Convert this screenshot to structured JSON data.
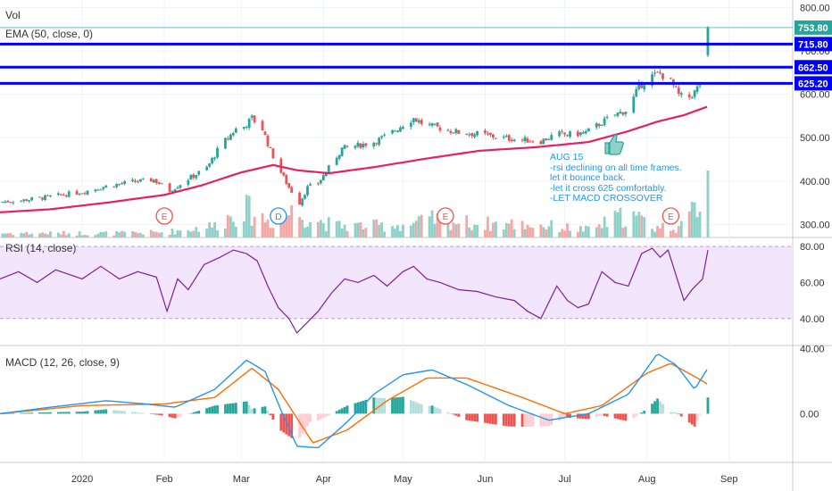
{
  "chart_data": {
    "type": "candlestick",
    "title": "",
    "xlabel": "",
    "ylabel": "",
    "x_range": [
      "2019-12-01",
      "2020-09-25"
    ],
    "x_ticks": [
      {
        "date": "2020-01-01",
        "label": "2020"
      },
      {
        "date": "2020-02-01",
        "label": "Feb"
      },
      {
        "date": "2020-03-01",
        "label": "Mar"
      },
      {
        "date": "2020-04-01",
        "label": "Apr"
      },
      {
        "date": "2020-05-01",
        "label": "May"
      },
      {
        "date": "2020-06-01",
        "label": "Jun"
      },
      {
        "date": "2020-07-01",
        "label": "Jul"
      },
      {
        "date": "2020-08-01",
        "label": "Aug"
      },
      {
        "date": "2020-09-01",
        "label": "Sep"
      }
    ],
    "price_panel": {
      "ylim": [
        270,
        805
      ],
      "y_ticks": [
        "300.00",
        "400.00",
        "500.00",
        "600.00",
        "700.00",
        "800.00"
      ],
      "close_series": [
        [
          "2019-12-01",
          352
        ],
        [
          "2019-12-10",
          356
        ],
        [
          "2019-12-20",
          364
        ],
        [
          "2020-01-01",
          375
        ],
        [
          "2020-01-10",
          388
        ],
        [
          "2020-01-20",
          398
        ],
        [
          "2020-01-28",
          403
        ],
        [
          "2020-02-03",
          378
        ],
        [
          "2020-02-10",
          405
        ],
        [
          "2020-02-17",
          430
        ],
        [
          "2020-02-22",
          480
        ],
        [
          "2020-02-28",
          520
        ],
        [
          "2020-03-02",
          525
        ],
        [
          "2020-03-05",
          545
        ],
        [
          "2020-03-09",
          520
        ],
        [
          "2020-03-12",
          470
        ],
        [
          "2020-03-16",
          420
        ],
        [
          "2020-03-19",
          385
        ],
        [
          "2020-03-23",
          350
        ],
        [
          "2020-03-26",
          385
        ],
        [
          "2020-03-30",
          395
        ],
        [
          "2020-04-03",
          430
        ],
        [
          "2020-04-08",
          475
        ],
        [
          "2020-04-14",
          482
        ],
        [
          "2020-04-20",
          490
        ],
        [
          "2020-04-25",
          505
        ],
        [
          "2020-05-01",
          530
        ],
        [
          "2020-05-05",
          545
        ],
        [
          "2020-05-09",
          530
        ],
        [
          "2020-05-15",
          522
        ],
        [
          "2020-05-22",
          512
        ],
        [
          "2020-05-30",
          508
        ],
        [
          "2020-06-07",
          500
        ],
        [
          "2020-06-15",
          495
        ],
        [
          "2020-06-22",
          492
        ],
        [
          "2020-06-28",
          508
        ],
        [
          "2020-07-04",
          507
        ],
        [
          "2020-07-09",
          512
        ],
        [
          "2020-07-15",
          535
        ],
        [
          "2020-07-20",
          553
        ],
        [
          "2020-07-25",
          565
        ],
        [
          "2020-07-29",
          618
        ],
        [
          "2020-08-02",
          640
        ],
        [
          "2020-08-06",
          648
        ],
        [
          "2020-08-10",
          630
        ],
        [
          "2020-08-13",
          598
        ],
        [
          "2020-08-16",
          588
        ],
        [
          "2020-08-19",
          605
        ],
        [
          "2020-08-22",
          632
        ],
        [
          "2020-08-24",
          753.8
        ]
      ],
      "ema_50": [
        [
          "2019-12-01",
          328
        ],
        [
          "2019-12-20",
          335
        ],
        [
          "2020-01-10",
          350
        ],
        [
          "2020-02-01",
          368
        ],
        [
          "2020-02-15",
          390
        ],
        [
          "2020-03-01",
          420
        ],
        [
          "2020-03-13",
          437
        ],
        [
          "2020-03-22",
          425
        ],
        [
          "2020-04-03",
          418
        ],
        [
          "2020-04-20",
          432
        ],
        [
          "2020-05-10",
          452
        ],
        [
          "2020-05-30",
          470
        ],
        [
          "2020-06-20",
          478
        ],
        [
          "2020-07-10",
          490
        ],
        [
          "2020-07-25",
          515
        ],
        [
          "2020-08-05",
          537
        ],
        [
          "2020-08-15",
          552
        ],
        [
          "2020-08-24",
          572
        ]
      ],
      "volume": [
        [
          "2020-01-15",
          8
        ],
        [
          "2020-02-02",
          10
        ],
        [
          "2020-02-20",
          22
        ],
        [
          "2020-03-02",
          55
        ],
        [
          "2020-03-12",
          30
        ],
        [
          "2020-03-20",
          48
        ],
        [
          "2020-04-05",
          22
        ],
        [
          "2020-04-22",
          22
        ],
        [
          "2020-05-03",
          24
        ],
        [
          "2020-05-13",
          34
        ],
        [
          "2020-05-28",
          26
        ],
        [
          "2020-06-20",
          24
        ],
        [
          "2020-07-10",
          14
        ],
        [
          "2020-07-25",
          44
        ],
        [
          "2020-08-04",
          20
        ],
        [
          "2020-08-15",
          20
        ],
        [
          "2020-08-24",
          100
        ]
      ],
      "event_markers": [
        {
          "date": "2020-02-01",
          "label": "E"
        },
        {
          "date": "2020-03-15",
          "label": "D"
        },
        {
          "date": "2020-05-17",
          "label": "E"
        },
        {
          "date": "2020-08-10",
          "label": "E"
        }
      ],
      "horizontal_lines": [
        {
          "label": "715.80",
          "value": 715.8
        },
        {
          "label": "662.50",
          "value": 662.5
        },
        {
          "label": "625.20",
          "value": 625.2
        }
      ],
      "current_price": {
        "label": "753.80",
        "value": 753.8
      }
    },
    "rsi_panel": {
      "ylim": [
        25,
        85
      ],
      "y_ticks": [
        "40.00",
        "60.00",
        "80.00"
      ],
      "band": [
        40,
        80
      ],
      "values": [
        [
          "2019-12-01",
          62
        ],
        [
          "2019-12-08",
          66
        ],
        [
          "2019-12-15",
          60
        ],
        [
          "2019-12-22",
          67
        ],
        [
          "2020-01-01",
          62
        ],
        [
          "2020-01-08",
          69
        ],
        [
          "2020-01-15",
          62
        ],
        [
          "2020-01-22",
          66
        ],
        [
          "2020-01-29",
          63
        ],
        [
          "2020-02-02",
          44
        ],
        [
          "2020-02-06",
          62
        ],
        [
          "2020-02-10",
          56
        ],
        [
          "2020-02-16",
          70
        ],
        [
          "2020-02-22",
          74
        ],
        [
          "2020-02-27",
          78
        ],
        [
          "2020-03-03",
          76
        ],
        [
          "2020-03-07",
          72
        ],
        [
          "2020-03-11",
          58
        ],
        [
          "2020-03-15",
          46
        ],
        [
          "2020-03-19",
          40
        ],
        [
          "2020-03-22",
          32
        ],
        [
          "2020-03-26",
          38
        ],
        [
          "2020-03-30",
          44
        ],
        [
          "2020-04-04",
          54
        ],
        [
          "2020-04-09",
          62
        ],
        [
          "2020-04-14",
          60
        ],
        [
          "2020-04-20",
          64
        ],
        [
          "2020-04-25",
          58
        ],
        [
          "2020-05-01",
          66
        ],
        [
          "2020-05-05",
          69
        ],
        [
          "2020-05-10",
          62
        ],
        [
          "2020-05-15",
          60
        ],
        [
          "2020-05-22",
          56
        ],
        [
          "2020-05-29",
          55
        ],
        [
          "2020-06-05",
          52
        ],
        [
          "2020-06-12",
          50
        ],
        [
          "2020-06-17",
          44
        ],
        [
          "2020-06-22",
          40
        ],
        [
          "2020-06-28",
          58
        ],
        [
          "2020-07-02",
          50
        ],
        [
          "2020-07-06",
          46
        ],
        [
          "2020-07-10",
          48
        ],
        [
          "2020-07-15",
          66
        ],
        [
          "2020-07-20",
          60
        ],
        [
          "2020-07-25",
          58
        ],
        [
          "2020-07-30",
          76
        ],
        [
          "2020-08-03",
          79
        ],
        [
          "2020-08-06",
          74
        ],
        [
          "2020-08-09",
          78
        ],
        [
          "2020-08-12",
          64
        ],
        [
          "2020-08-15",
          50
        ],
        [
          "2020-08-18",
          56
        ],
        [
          "2020-08-22",
          62
        ],
        [
          "2020-08-24",
          78
        ]
      ]
    },
    "macd_panel": {
      "ylim": [
        -30,
        42
      ],
      "y_ticks": [
        "0.00",
        "40.00"
      ],
      "macd": [
        [
          "2019-12-01",
          0
        ],
        [
          "2019-12-20",
          4
        ],
        [
          "2020-01-10",
          8
        ],
        [
          "2020-01-25",
          6
        ],
        [
          "2020-02-05",
          4
        ],
        [
          "2020-02-20",
          15
        ],
        [
          "2020-03-03",
          33
        ],
        [
          "2020-03-10",
          26
        ],
        [
          "2020-03-16",
          2
        ],
        [
          "2020-03-22",
          -20
        ],
        [
          "2020-03-30",
          -21
        ],
        [
          "2020-04-10",
          -5
        ],
        [
          "2020-04-20",
          12
        ],
        [
          "2020-05-01",
          24
        ],
        [
          "2020-05-12",
          27
        ],
        [
          "2020-05-25",
          18
        ],
        [
          "2020-06-10",
          5
        ],
        [
          "2020-06-25",
          -4
        ],
        [
          "2020-07-10",
          0
        ],
        [
          "2020-07-25",
          12
        ],
        [
          "2020-08-05",
          37
        ],
        [
          "2020-08-12",
          30
        ],
        [
          "2020-08-19",
          15
        ],
        [
          "2020-08-24",
          28
        ]
      ],
      "signal": [
        [
          "2019-12-01",
          0
        ],
        [
          "2020-01-01",
          5
        ],
        [
          "2020-02-01",
          6
        ],
        [
          "2020-02-20",
          10
        ],
        [
          "2020-03-05",
          28
        ],
        [
          "2020-03-15",
          15
        ],
        [
          "2020-03-28",
          -18
        ],
        [
          "2020-04-10",
          -10
        ],
        [
          "2020-04-25",
          8
        ],
        [
          "2020-05-10",
          22
        ],
        [
          "2020-05-25",
          22
        ],
        [
          "2020-06-15",
          10
        ],
        [
          "2020-07-01",
          0
        ],
        [
          "2020-07-15",
          5
        ],
        [
          "2020-08-01",
          25
        ],
        [
          "2020-08-10",
          31
        ],
        [
          "2020-08-20",
          22
        ],
        [
          "2020-08-24",
          18
        ]
      ]
    },
    "legends": {
      "vol": "Vol",
      "ema": "EMA (50, close, 0)",
      "rsi": "RSI (14, close)",
      "macd": "MACD (12, 26, close, 9)"
    },
    "annotation": {
      "lines": [
        "AUG 15",
        "-rsi declining on all time frames.",
        "let it bounce back.",
        "-let it cross 625 comfortably.",
        "-LET MACD CROSSOVER"
      ]
    },
    "colors": {
      "up": "#26a69a",
      "down": "#ef5350",
      "ema": "#e91e63",
      "rsi": "#7b1fa2",
      "rsi_band": "#f3e5fb",
      "macd": "#2196f3",
      "signal": "#ff6d00",
      "hline": "#0000ff",
      "annotation": "#2196f3"
    }
  }
}
